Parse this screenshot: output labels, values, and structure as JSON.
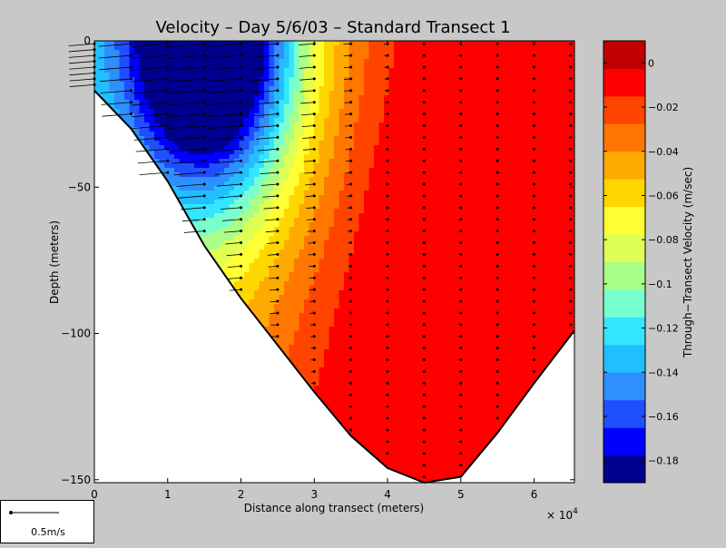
{
  "chart_data": {
    "type": "heatmap",
    "title": "Velocity – Day 5/6/03 – Standard Transect 1",
    "xlabel": "Distance along transect (meters)",
    "ylabel": "Depth (meters)",
    "x_multiplier_label": "× 10",
    "x_multiplier_exponent": "4",
    "xlim": [
      0,
      65500
    ],
    "ylim": [
      -151,
      0
    ],
    "xticks": [
      {
        "v": 0,
        "label": "0"
      },
      {
        "v": 10000,
        "label": "1"
      },
      {
        "v": 20000,
        "label": "2"
      },
      {
        "v": 30000,
        "label": "3"
      },
      {
        "v": 40000,
        "label": "4"
      },
      {
        "v": 50000,
        "label": "5"
      },
      {
        "v": 60000,
        "label": "6"
      }
    ],
    "yticks": [
      {
        "v": 0,
        "label": "0"
      },
      {
        "v": -50,
        "label": "−50"
      },
      {
        "v": -100,
        "label": "−100"
      },
      {
        "v": -150,
        "label": "−150"
      }
    ],
    "bottom_profile": [
      {
        "x": 0,
        "depth": -17
      },
      {
        "x": 5000,
        "depth": -30
      },
      {
        "x": 10000,
        "depth": -48
      },
      {
        "x": 15000,
        "depth": -70
      },
      {
        "x": 20000,
        "depth": -88
      },
      {
        "x": 25000,
        "depth": -104
      },
      {
        "x": 30000,
        "depth": -120
      },
      {
        "x": 35000,
        "depth": -135
      },
      {
        "x": 40000,
        "depth": -146
      },
      {
        "x": 45000,
        "depth": -151
      },
      {
        "x": 50000,
        "depth": -149
      },
      {
        "x": 55000,
        "depth": -134
      },
      {
        "x": 60000,
        "depth": -117
      },
      {
        "x": 65500,
        "depth": -99
      }
    ],
    "velocity_field_description": "Through-transect velocity contours: strongest negative (about −0.18 m/s) near surface at 1–2.5×10^4 m, increasing to about 0 m/s toward the east side (x > 5×10^4 m).",
    "colorbar": {
      "label": "Through−Transect Velocity (m/sec)",
      "min": -0.19,
      "max": 0.01,
      "ticks": [
        {
          "v": 0,
          "label": "0"
        },
        {
          "v": -0.02,
          "label": "−0.02"
        },
        {
          "v": -0.04,
          "label": "−0.04"
        },
        {
          "v": -0.06,
          "label": "−0.06"
        },
        {
          "v": -0.08,
          "label": "−0.08"
        },
        {
          "v": -0.1,
          "label": "−0.1"
        },
        {
          "v": -0.12,
          "label": "−0.12"
        },
        {
          "v": -0.14,
          "label": "−0.14"
        },
        {
          "v": -0.16,
          "label": "−0.16"
        },
        {
          "v": -0.18,
          "label": "−0.18"
        }
      ],
      "colors": [
        "#00008f",
        "#0000ff",
        "#1f4fff",
        "#2e8fff",
        "#22bfff",
        "#33e5ff",
        "#77ffd0",
        "#aaff88",
        "#e0ff55",
        "#ffff33",
        "#ffd700",
        "#ffaa00",
        "#ff7700",
        "#ff4400",
        "#ff0000",
        "#c00000"
      ]
    },
    "scale_label": "0.5m/s"
  },
  "colors": {
    "background": "#c8c8c8",
    "plot_background": "#ffffff",
    "axis": "#000000"
  }
}
